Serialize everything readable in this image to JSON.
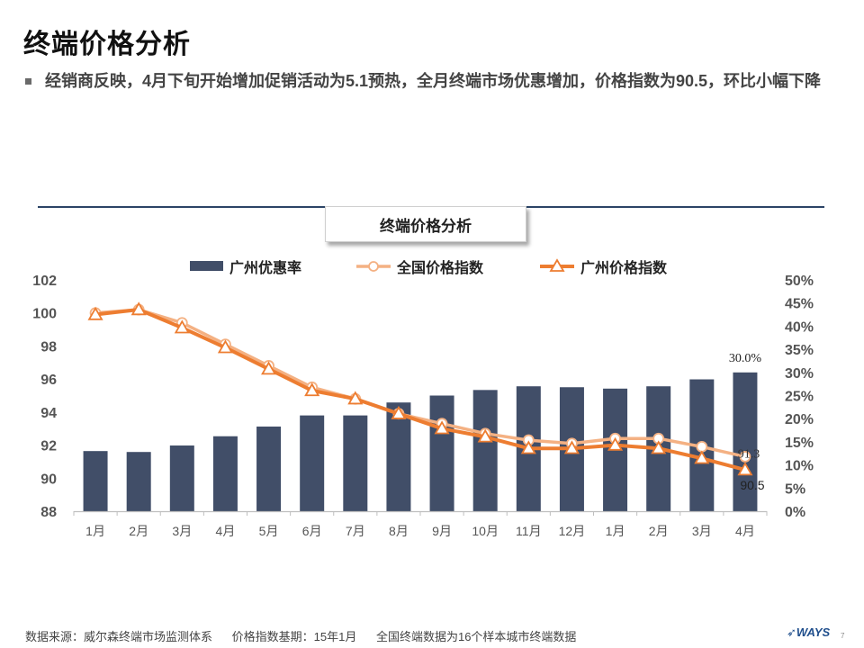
{
  "page": {
    "title": "终端价格分析",
    "bullet": "经销商反映，4月下旬开始增加促销活动为5.1预热，全月终端市场优惠增加，价格指数为90.5，环比小幅下降",
    "page_number": "7"
  },
  "chart_data": {
    "type": "bar",
    "title": "终端价格分析",
    "categories": [
      "1月",
      "2月",
      "3月",
      "4月",
      "5月",
      "6月",
      "7月",
      "8月",
      "9月",
      "10月",
      "11月",
      "12月",
      "1月",
      "2月",
      "3月",
      "4月"
    ],
    "bar_series": {
      "name": "广州优惠率",
      "axis": "right",
      "values": [
        13.0,
        12.8,
        14.2,
        16.2,
        18.3,
        20.7,
        20.7,
        23.5,
        25.0,
        26.2,
        27.0,
        26.8,
        26.5,
        27.0,
        28.5,
        30.0
      ],
      "color": "#414e68"
    },
    "line_series": [
      {
        "name": "全国价格指数",
        "axis": "left",
        "values": [
          100.0,
          100.2,
          99.4,
          98.1,
          96.8,
          95.5,
          94.8,
          93.9,
          93.3,
          92.7,
          92.3,
          92.1,
          92.4,
          92.4,
          91.9,
          91.3
        ],
        "color": "#f4b183",
        "marker": "circle"
      },
      {
        "name": "广州价格指数",
        "axis": "left",
        "values": [
          99.9,
          100.2,
          99.1,
          97.9,
          96.6,
          95.3,
          94.8,
          93.9,
          93.0,
          92.5,
          91.8,
          91.8,
          92.0,
          91.8,
          91.2,
          90.5
        ],
        "color": "#ed7d31",
        "marker": "triangle"
      }
    ],
    "ylim_left": [
      88,
      102
    ],
    "yticks_left": [
      "88",
      "90",
      "92",
      "94",
      "96",
      "98",
      "100",
      "102"
    ],
    "ylim_right": [
      0,
      50
    ],
    "yticks_right": [
      "0%",
      "5%",
      "10%",
      "15%",
      "20%",
      "25%",
      "30%",
      "35%",
      "40%",
      "45%",
      "50%"
    ],
    "annotations": {
      "bar_last_label": "30.0%",
      "national_last_label": "91.3",
      "guangzhou_last_label": "90.5"
    },
    "legend_placement": "top",
    "grid": false
  },
  "footer": {
    "source": "数据来源：威尔森终端市场监测体系",
    "base": "价格指数基期：15年1月",
    "note": "全国终端数据为16个样本城市终端数据"
  },
  "brand": {
    "logo_text": "WAYS"
  }
}
